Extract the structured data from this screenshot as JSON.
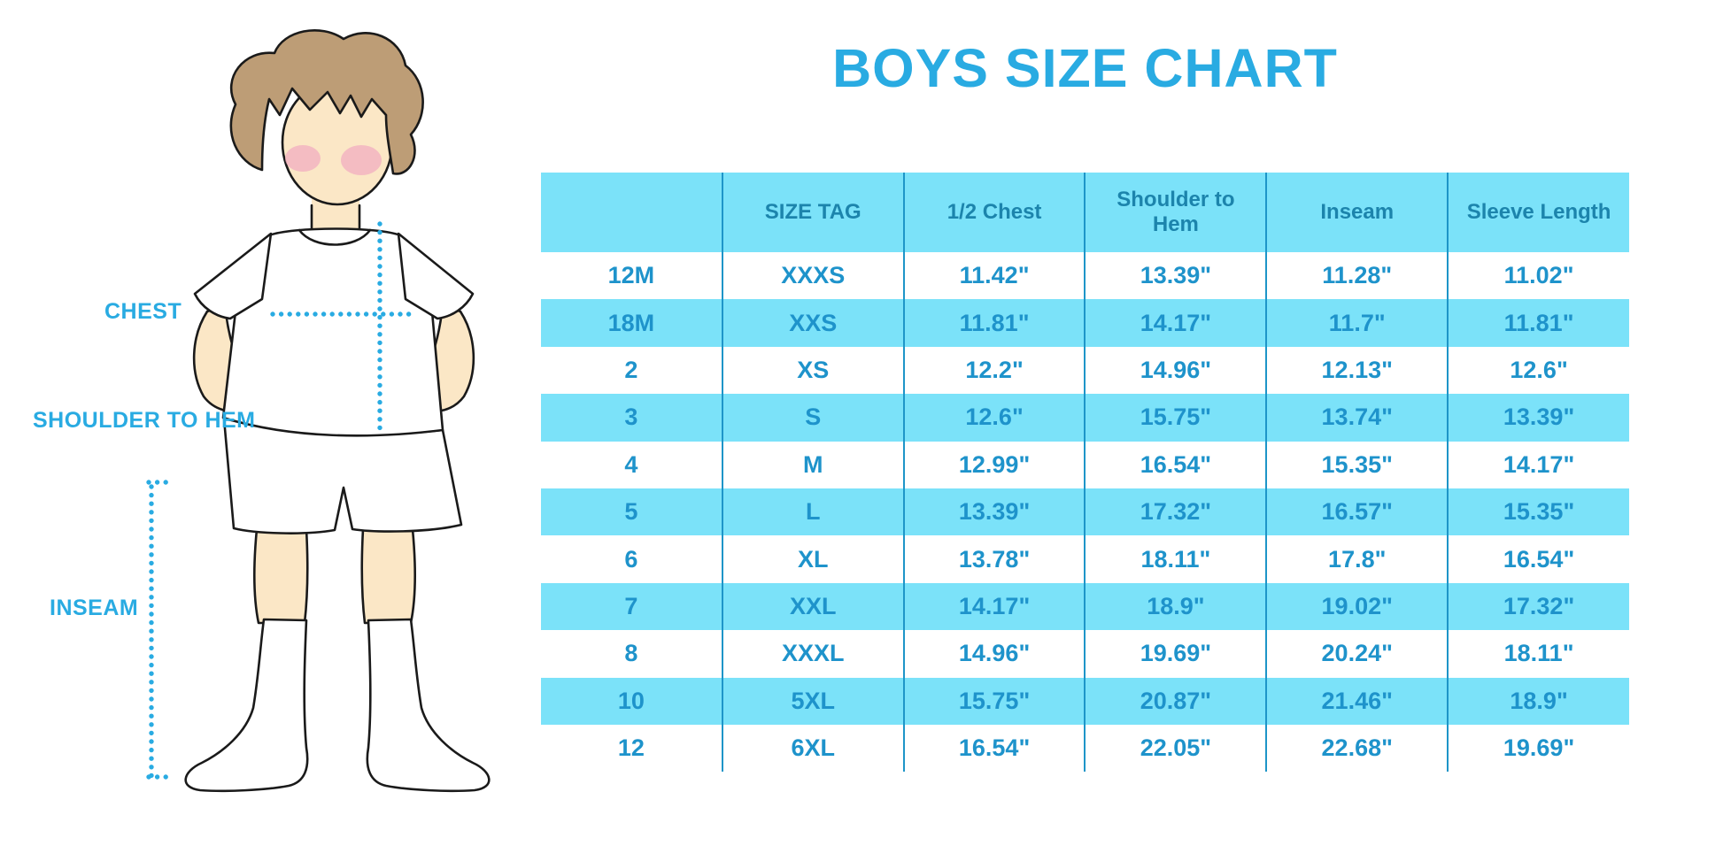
{
  "page": {
    "title": "BOYS SIZE CHART"
  },
  "figure": {
    "labels": {
      "chest": "CHEST",
      "shoulder_to_hem": "SHOULDER TO HEM",
      "inseam": "INSEAM"
    }
  },
  "colors": {
    "accent_blue": "#29ABE2",
    "header_text": "#1C84AC",
    "cell_text": "#1E93CB",
    "stripe_cyan": "#7BE2F9",
    "grid_line": "#1E95C8",
    "skin": "#FBE7C6",
    "hair": "#BD9D76",
    "cheek": "#F2AEC0",
    "outline": "#1A1A1A"
  },
  "chart_data": {
    "type": "table",
    "title": "BOYS SIZE CHART",
    "columns": [
      "",
      "SIZE TAG",
      "1/2 Chest",
      "Shoulder to Hem",
      "Inseam",
      "Sleeve Length"
    ],
    "rows": [
      [
        "12M",
        "XXXS",
        "11.42\"",
        "13.39\"",
        "11.28\"",
        "11.02\""
      ],
      [
        "18M",
        "XXS",
        "11.81\"",
        "14.17\"",
        "11.7\"",
        "11.81\""
      ],
      [
        "2",
        "XS",
        "12.2\"",
        "14.96\"",
        "12.13\"",
        "12.6\""
      ],
      [
        "3",
        "S",
        "12.6\"",
        "15.75\"",
        "13.74\"",
        "13.39\""
      ],
      [
        "4",
        "M",
        "12.99\"",
        "16.54\"",
        "15.35\"",
        "14.17\""
      ],
      [
        "5",
        "L",
        "13.39\"",
        "17.32\"",
        "16.57\"",
        "15.35\""
      ],
      [
        "6",
        "XL",
        "13.78\"",
        "18.11\"",
        "17.8\"",
        "16.54\""
      ],
      [
        "7",
        "XXL",
        "14.17\"",
        "18.9\"",
        "19.02\"",
        "17.32\""
      ],
      [
        "8",
        "XXXL",
        "14.96\"",
        "19.69\"",
        "20.24\"",
        "18.11\""
      ],
      [
        "10",
        "5XL",
        "15.75\"",
        "20.87\"",
        "21.46\"",
        "18.9\""
      ],
      [
        "12",
        "6XL",
        "16.54\"",
        "22.05\"",
        "22.68\"",
        "19.69\""
      ]
    ]
  }
}
